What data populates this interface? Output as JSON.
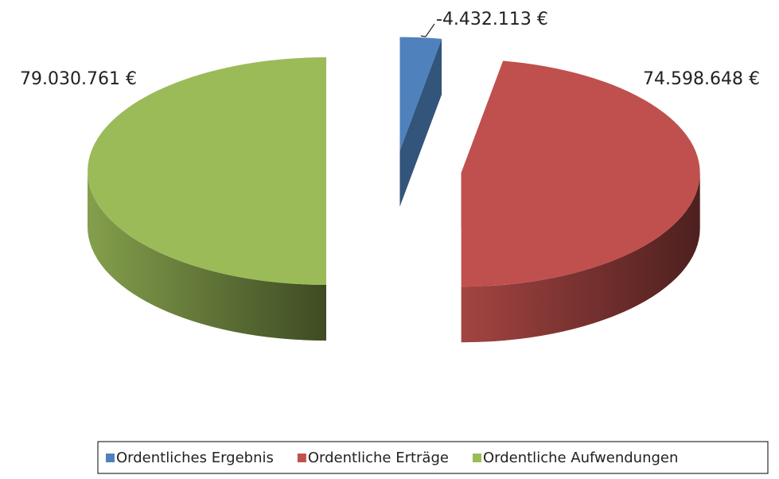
{
  "chart_data": {
    "type": "pie",
    "categories": [
      "Ordentliches Ergebnis",
      "Ordentliche Erträge",
      "Ordentliche Aufwendungen"
    ],
    "values": [
      -4432113,
      74598648,
      79030761
    ],
    "value_labels": [
      "-4.432.113 €",
      "74.598.648 €",
      "79.030.761 €"
    ],
    "colors": [
      "#4f81bd",
      "#c0504d",
      "#9bbb59"
    ],
    "legend": "bottom"
  }
}
